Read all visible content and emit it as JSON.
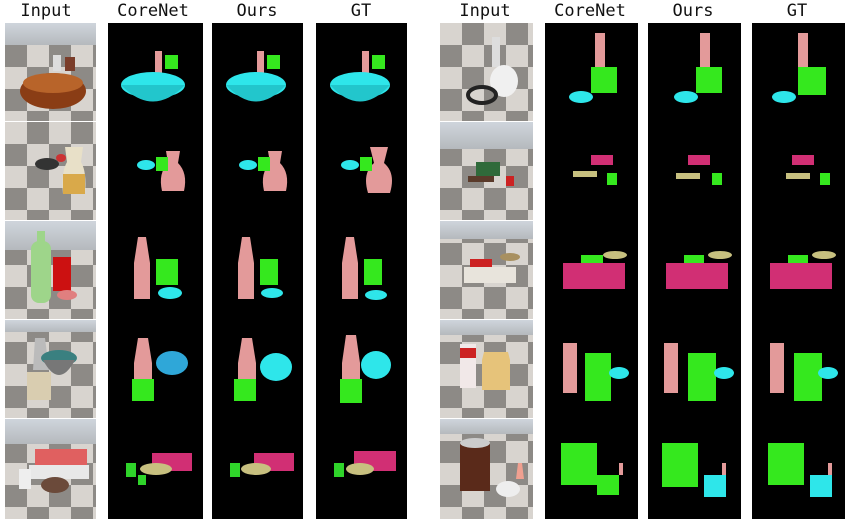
{
  "headers": {
    "left": [
      "Input",
      "CoreNet",
      "Ours",
      "GT"
    ],
    "right": [
      "Input",
      "CoreNet",
      "Ours",
      "GT"
    ]
  },
  "colors": {
    "cup": "#35e81e",
    "bowl": "#2ee6ea",
    "bottle": "#e39a9a",
    "sofa": "#d12f74",
    "table": "#c7c07f",
    "chair": "#2fd42a"
  }
}
